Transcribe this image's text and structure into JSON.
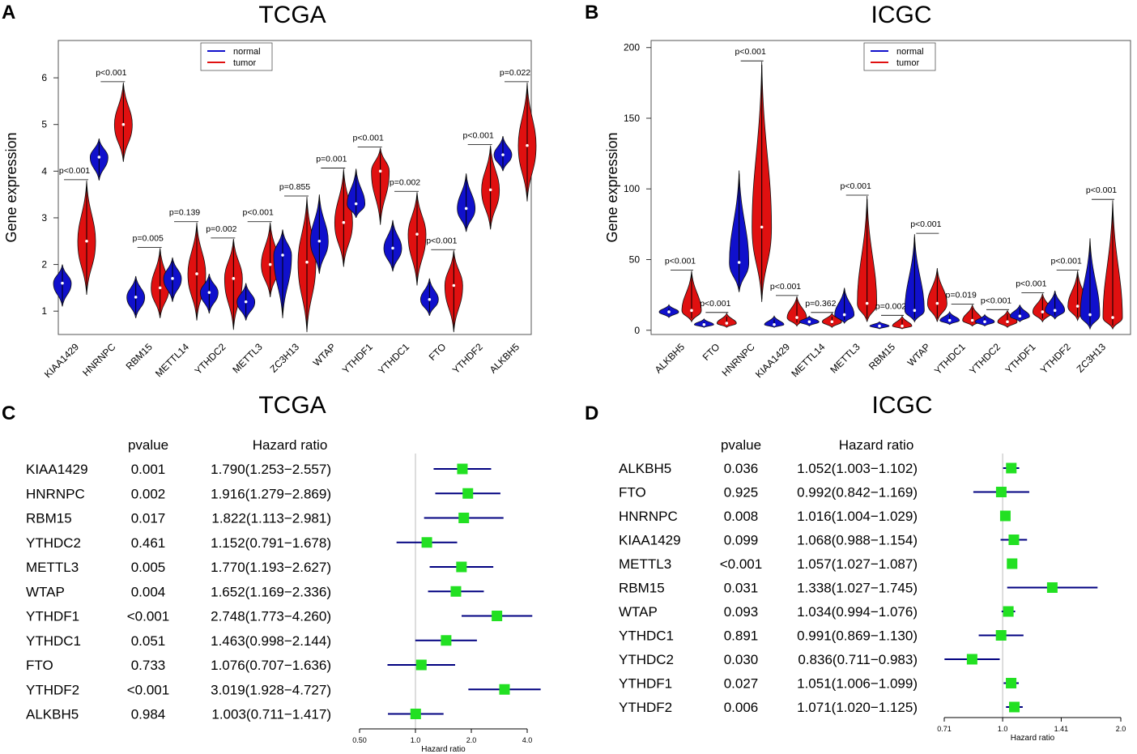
{
  "panels": {
    "A": {
      "letter": "A",
      "title": "TCGA"
    },
    "B": {
      "letter": "B",
      "title": "ICGC"
    },
    "C": {
      "letter": "C",
      "title": "TCGA"
    },
    "D": {
      "letter": "D",
      "title": "ICGC"
    }
  },
  "colors": {
    "normal": "#1010cc",
    "tumor": "#e01010",
    "box": "#0000ff",
    "ci": "#000080"
  },
  "chart_data": [
    {
      "id": "A",
      "type": "violin",
      "title": "TCGA",
      "ylabel": "Gene expression",
      "ylim": [
        0.5,
        6.8
      ],
      "yticks": [
        1,
        2,
        3,
        4,
        5,
        6
      ],
      "legend": [
        "normal",
        "tumor"
      ],
      "legend_position": "top-center",
      "categories": [
        "KIAA1429",
        "HNRNPC",
        "RBM15",
        "METTL14",
        "YTHDC2",
        "METTL3",
        "ZC3H13",
        "WTAP",
        "YTHDF1",
        "YTHDC1",
        "FTO",
        "YTHDF2",
        "ALKBH5"
      ],
      "pvalues": [
        "p<0.001",
        "p<0.001",
        "p=0.005",
        "p=0.139",
        "p=0.002",
        "p<0.001",
        "p=0.855",
        "p=0.001",
        "p<0.001",
        "p=0.002",
        "p<0.001",
        "p<0.001",
        "p=0.022"
      ],
      "series": [
        {
          "name": "normal",
          "median": [
            1.6,
            4.3,
            1.3,
            1.7,
            1.4,
            1.2,
            2.2,
            2.5,
            3.3,
            2.35,
            1.25,
            3.2,
            4.35
          ],
          "min": [
            1.1,
            3.8,
            0.85,
            1.2,
            0.95,
            0.8,
            0.85,
            1.8,
            3.0,
            1.85,
            0.9,
            2.7,
            4.0
          ],
          "max": [
            2.0,
            4.7,
            1.75,
            2.15,
            1.8,
            1.6,
            2.75,
            3.5,
            4.05,
            2.95,
            1.7,
            3.95,
            4.75
          ]
        },
        {
          "name": "tumor",
          "median": [
            2.5,
            5.0,
            1.5,
            1.8,
            1.7,
            2.0,
            2.05,
            2.9,
            4.0,
            2.65,
            1.55,
            3.6,
            4.55
          ],
          "min": [
            1.35,
            4.2,
            0.85,
            0.8,
            0.6,
            1.3,
            0.55,
            1.95,
            2.85,
            1.55,
            0.55,
            2.75,
            3.35
          ],
          "max": [
            3.8,
            5.9,
            2.35,
            2.9,
            2.55,
            2.9,
            3.45,
            4.05,
            4.5,
            3.55,
            2.3,
            4.55,
            5.9
          ]
        }
      ]
    },
    {
      "id": "B",
      "type": "violin",
      "title": "ICGC",
      "ylabel": "Gene expression",
      "ylim": [
        -3,
        205
      ],
      "yticks": [
        0,
        50,
        100,
        150,
        200
      ],
      "legend": [
        "normal",
        "tumor"
      ],
      "legend_position": "top-center",
      "categories": [
        "ALKBH5",
        "FTO",
        "HNRNPC",
        "KIAA1429",
        "METTL14",
        "METTL3",
        "RBM15",
        "WTAP",
        "YTHDC1",
        "YTHDC2",
        "YTHDF1",
        "YTHDF2",
        "ZC3H13"
      ],
      "pvalues": [
        "p<0.001",
        "p<0.001",
        "p<0.001",
        "p<0.001",
        "p=0.362",
        "p<0.001",
        "p=0.002",
        "p<0.001",
        "p=0.019",
        "p<0.001",
        "p<0.001",
        "p<0.001",
        "p<0.001"
      ],
      "series": [
        {
          "name": "normal",
          "median": [
            13,
            4,
            48,
            4,
            6,
            11,
            3,
            14,
            7,
            6,
            10,
            14,
            11
          ],
          "min": [
            9,
            2,
            27,
            2,
            3,
            5,
            1,
            6,
            4,
            3,
            6,
            8,
            1
          ],
          "max": [
            18,
            8,
            113,
            10,
            10,
            30,
            6,
            68,
            13,
            11,
            18,
            28,
            65
          ]
        },
        {
          "name": "tumor",
          "median": [
            14,
            5,
            73,
            9,
            6,
            19,
            3,
            19,
            7,
            6,
            13,
            17,
            9
          ],
          "min": [
            6,
            2,
            20,
            3,
            2,
            6,
            1,
            6,
            3,
            2,
            6,
            7,
            1
          ],
          "max": [
            42,
            12,
            190,
            24,
            12,
            95,
            10,
            44,
            18,
            14,
            26,
            42,
            92
          ]
        }
      ]
    },
    {
      "id": "C",
      "type": "forest",
      "title": "TCGA",
      "col_pvalue": "pvalue",
      "col_hr": "Hazard ratio",
      "xlabel": "Hazard ratio",
      "xscale": "log2",
      "xticks": [
        0.5,
        1.0,
        2.0,
        4.0
      ],
      "xtick_labels": [
        "0.50",
        "1.0",
        "2.0",
        "4.0"
      ],
      "rows": [
        {
          "gene": "KIAA1429",
          "pvalue": "0.001",
          "hr_text": "1.790(1.253−2.557)",
          "hr": 1.79,
          "lo": 1.253,
          "hi": 2.557
        },
        {
          "gene": "HNRNPC",
          "pvalue": "0.002",
          "hr_text": "1.916(1.279−2.869)",
          "hr": 1.916,
          "lo": 1.279,
          "hi": 2.869
        },
        {
          "gene": "RBM15",
          "pvalue": "0.017",
          "hr_text": "1.822(1.113−2.981)",
          "hr": 1.822,
          "lo": 1.113,
          "hi": 2.981
        },
        {
          "gene": "YTHDC2",
          "pvalue": "0.461",
          "hr_text": "1.152(0.791−1.678)",
          "hr": 1.152,
          "lo": 0.791,
          "hi": 1.678
        },
        {
          "gene": "METTL3",
          "pvalue": "0.005",
          "hr_text": "1.770(1.193−2.627)",
          "hr": 1.77,
          "lo": 1.193,
          "hi": 2.627
        },
        {
          "gene": "WTAP",
          "pvalue": "0.004",
          "hr_text": "1.652(1.169−2.336)",
          "hr": 1.652,
          "lo": 1.169,
          "hi": 2.336
        },
        {
          "gene": "YTHDF1",
          "pvalue": "<0.001",
          "hr_text": "2.748(1.773−4.260)",
          "hr": 2.748,
          "lo": 1.773,
          "hi": 4.26
        },
        {
          "gene": "YTHDC1",
          "pvalue": "0.051",
          "hr_text": "1.463(0.998−2.144)",
          "hr": 1.463,
          "lo": 0.998,
          "hi": 2.144
        },
        {
          "gene": "FTO",
          "pvalue": "0.733",
          "hr_text": "1.076(0.707−1.636)",
          "hr": 1.076,
          "lo": 0.707,
          "hi": 1.636
        },
        {
          "gene": "YTHDF2",
          "pvalue": "<0.001",
          "hr_text": "3.019(1.928−4.727)",
          "hr": 3.019,
          "lo": 1.928,
          "hi": 4.727
        },
        {
          "gene": "ALKBH5",
          "pvalue": "0.984",
          "hr_text": "1.003(0.711−1.417)",
          "hr": 1.003,
          "lo": 0.711,
          "hi": 1.417
        }
      ]
    },
    {
      "id": "D",
      "type": "forest",
      "title": "ICGC",
      "col_pvalue": "pvalue",
      "col_hr": "Hazard ratio",
      "xlabel": "Hazard ratio",
      "xscale": "log2",
      "xticks": [
        0.71,
        1.0,
        1.41,
        2.0
      ],
      "xtick_labels": [
        "0.71",
        "1.0",
        "1.41",
        "2.0"
      ],
      "rows": [
        {
          "gene": "ALKBH5",
          "pvalue": "0.036",
          "hr_text": "1.052(1.003−1.102)",
          "hr": 1.052,
          "lo": 1.003,
          "hi": 1.102
        },
        {
          "gene": "FTO",
          "pvalue": "0.925",
          "hr_text": "0.992(0.842−1.169)",
          "hr": 0.992,
          "lo": 0.842,
          "hi": 1.169
        },
        {
          "gene": "HNRNPC",
          "pvalue": "0.008",
          "hr_text": "1.016(1.004−1.029)",
          "hr": 1.016,
          "lo": 1.004,
          "hi": 1.029
        },
        {
          "gene": "KIAA1429",
          "pvalue": "0.099",
          "hr_text": "1.068(0.988−1.154)",
          "hr": 1.068,
          "lo": 0.988,
          "hi": 1.154
        },
        {
          "gene": "METTL3",
          "pvalue": "<0.001",
          "hr_text": "1.057(1.027−1.087)",
          "hr": 1.057,
          "lo": 1.027,
          "hi": 1.087
        },
        {
          "gene": "RBM15",
          "pvalue": "0.031",
          "hr_text": "1.338(1.027−1.745)",
          "hr": 1.338,
          "lo": 1.027,
          "hi": 1.745
        },
        {
          "gene": "WTAP",
          "pvalue": "0.093",
          "hr_text": "1.034(0.994−1.076)",
          "hr": 1.034,
          "lo": 0.994,
          "hi": 1.076
        },
        {
          "gene": "YTHDC1",
          "pvalue": "0.891",
          "hr_text": "0.991(0.869−1.130)",
          "hr": 0.991,
          "lo": 0.869,
          "hi": 1.13
        },
        {
          "gene": "YTHDC2",
          "pvalue": "0.030",
          "hr_text": "0.836(0.711−0.983)",
          "hr": 0.836,
          "lo": 0.711,
          "hi": 0.983
        },
        {
          "gene": "YTHDF1",
          "pvalue": "0.027",
          "hr_text": "1.051(1.006−1.099)",
          "hr": 1.051,
          "lo": 1.006,
          "hi": 1.099
        },
        {
          "gene": "YTHDF2",
          "pvalue": "0.006",
          "hr_text": "1.071(1.020−1.125)",
          "hr": 1.071,
          "lo": 1.02,
          "hi": 1.125
        }
      ]
    }
  ]
}
